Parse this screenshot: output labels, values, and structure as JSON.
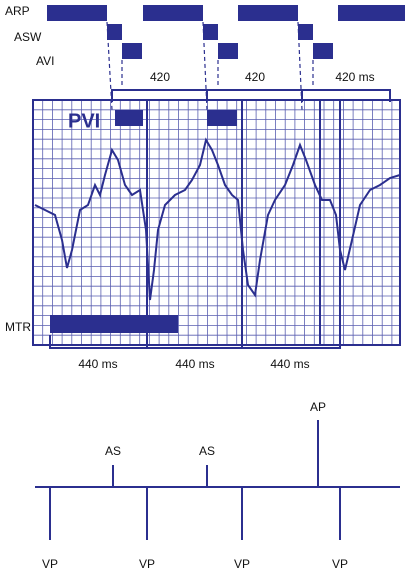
{
  "timing_labels": [
    "ARP",
    "ASW",
    "AVI"
  ],
  "upper_intervals": [
    "420",
    "420",
    "420 ms"
  ],
  "ecg": {
    "pvi_label": "PVI",
    "mtr_label": "MTR"
  },
  "lower_intervals": [
    "440 ms",
    "440 ms",
    "440 ms"
  ],
  "marker_channel": {
    "above": [
      "AS",
      "AS",
      "AP"
    ],
    "below": [
      "VP",
      "VP",
      "VP",
      "VP"
    ]
  }
}
